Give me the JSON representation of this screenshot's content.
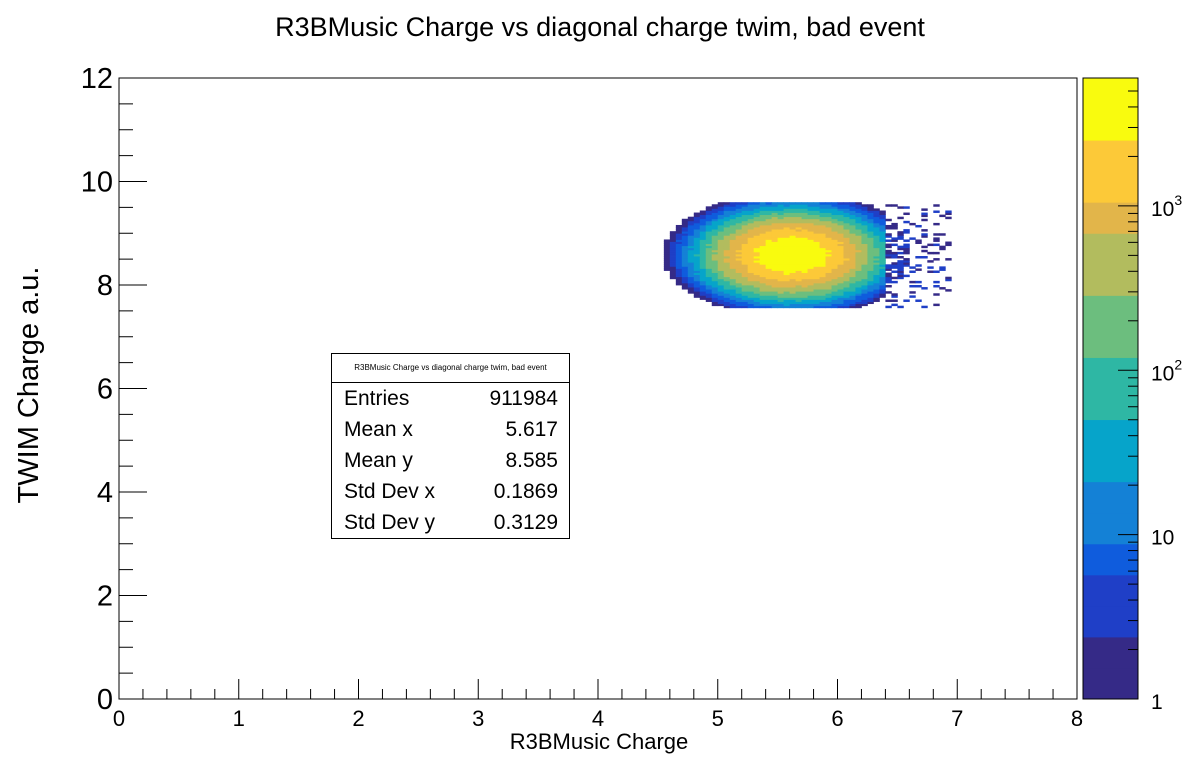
{
  "chart_data": {
    "type": "heatmap",
    "title": "R3BMusic Charge vs diagonal charge twim, bad event",
    "xlabel": "R3BMusic Charge",
    "ylabel": "TWIM Charge a.u.",
    "xlim": [
      0,
      8
    ],
    "ylim": [
      0,
      12
    ],
    "x_ticks": [
      "0",
      "1",
      "2",
      "3",
      "4",
      "5",
      "6",
      "7",
      "8"
    ],
    "y_ticks": [
      "0",
      "2",
      "4",
      "6",
      "8",
      "10",
      "12"
    ],
    "z_scale": "log",
    "z_range": [
      1,
      6000
    ],
    "z_tick_labels": [
      {
        "value": 1,
        "base": "1",
        "exp": ""
      },
      {
        "value": 10,
        "base": "10",
        "exp": ""
      },
      {
        "value": 100,
        "base": "10",
        "exp": "2"
      },
      {
        "value": 1000,
        "base": "10",
        "exp": "3"
      }
    ],
    "distribution": {
      "center_x": 5.617,
      "center_y": 8.585,
      "spread_x": 0.1869,
      "spread_y": 0.3129,
      "x_range": [
        4.45,
        6.95
      ],
      "y_range": [
        7.55,
        9.6
      ],
      "peak_count": 5500
    },
    "colormap": [
      "#352a87",
      "#1f3fc7",
      "#0f5cdd",
      "#1481d6",
      "#06a4ca",
      "#2eb7a4",
      "#6cbe7e",
      "#b2bc5e",
      "#e2b54a",
      "#fcc938",
      "#f9fb0e"
    ],
    "grid": false
  },
  "stats": {
    "title": "R3BMusic Charge vs diagonal charge twim, bad event",
    "rows": [
      {
        "label": "Entries",
        "value": "911984"
      },
      {
        "label": "Mean x",
        "value": "5.617"
      },
      {
        "label": "Mean y",
        "value": "8.585"
      },
      {
        "label": "Std Dev x",
        "value": "0.1869"
      },
      {
        "label": "Std Dev y",
        "value": "0.3129"
      }
    ]
  }
}
